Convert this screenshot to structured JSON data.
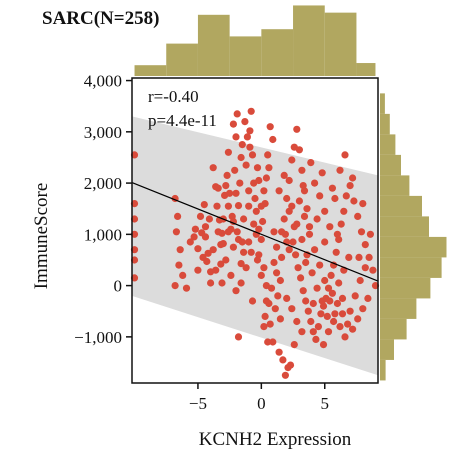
{
  "chart_data": {
    "type": "scatter",
    "title": "SARC(N=258)",
    "xlabel": "KCNH2 Expression",
    "ylabel": "ImmuneScore",
    "xlim": [
      -10.2,
      9.2
    ],
    "ylim": [
      -1900,
      4050
    ],
    "xticks": [
      -5,
      0,
      5
    ],
    "xtick_labels": [
      "−5",
      "0",
      "5"
    ],
    "yticks": [
      4000,
      3000,
      2000,
      1000,
      0,
      -1000
    ],
    "ytick_labels": [
      "4,000",
      "3,000",
      "2,000",
      "1,000",
      "0",
      "−1,000"
    ],
    "annotations": [
      "r=-0.40",
      "p=4.4e-11"
    ],
    "regression": {
      "slope": -99,
      "intercept": 1000,
      "x_range": [
        -10.2,
        9.2
      ]
    },
    "confidence_band": {
      "upper_left": 3300,
      "upper_right": 2150,
      "lower_left": -200,
      "lower_right": -1750
    },
    "points": [
      [
        -10.0,
        2550
      ],
      [
        -10.0,
        1600
      ],
      [
        -10.0,
        1300
      ],
      [
        -10.0,
        1000
      ],
      [
        -10.0,
        700
      ],
      [
        -10.0,
        500
      ],
      [
        -10.0,
        150
      ],
      [
        -6.8,
        1700
      ],
      [
        -6.6,
        1350
      ],
      [
        -6.7,
        1050
      ],
      [
        -6.4,
        700
      ],
      [
        -6.5,
        400
      ],
      [
        -6.2,
        200
      ],
      [
        -5.9,
        -50
      ],
      [
        -6.8,
        0
      ],
      [
        -5.3,
        950
      ],
      [
        -5.0,
        720
      ],
      [
        -4.7,
        1030
      ],
      [
        -4.5,
        1580
      ],
      [
        -4.4,
        1150
      ],
      [
        -4.2,
        630
      ],
      [
        -4.0,
        270
      ],
      [
        -4.3,
        470
      ],
      [
        -3.8,
        2300
      ],
      [
        -3.6,
        1930
      ],
      [
        -3.5,
        1550
      ],
      [
        -3.3,
        1280
      ],
      [
        -3.1,
        1020
      ],
      [
        -3.0,
        820
      ],
      [
        -3.2,
        420
      ],
      [
        -2.9,
        1760
      ],
      [
        -2.7,
        2150
      ],
      [
        -2.6,
        2600
      ],
      [
        -2.5,
        1800
      ],
      [
        -2.4,
        1100
      ],
      [
        -2.3,
        1350
      ],
      [
        -2.2,
        750
      ],
      [
        -2.1,
        2250
      ],
      [
        -2.0,
        1800
      ],
      [
        -1.9,
        1050
      ],
      [
        -1.8,
        1560
      ],
      [
        -1.7,
        2000
      ],
      [
        -1.6,
        430
      ],
      [
        -1.5,
        850
      ],
      [
        -1.8,
        -1000
      ],
      [
        -1.1,
        2900
      ],
      [
        -2.2,
        3150
      ],
      [
        -1.9,
        3350
      ],
      [
        -1.3,
        3200
      ],
      [
        -0.9,
        3020
      ],
      [
        -0.8,
        3400
      ],
      [
        -1.6,
        2500
      ],
      [
        -1.2,
        2350
      ],
      [
        -1.0,
        1850
      ],
      [
        -0.9,
        2700
      ],
      [
        -0.7,
        2550
      ],
      [
        -0.6,
        2000
      ],
      [
        -0.5,
        1700
      ],
      [
        -0.4,
        1450
      ],
      [
        -0.3,
        2300
      ],
      [
        -0.2,
        1100
      ],
      [
        0.0,
        900
      ],
      [
        0.1,
        1250
      ],
      [
        0.2,
        1850
      ],
      [
        0.3,
        1600
      ],
      [
        0.4,
        2100
      ],
      [
        0.5,
        2550
      ],
      [
        0.6,
        2300
      ],
      [
        0.7,
        3100
      ],
      [
        0.9,
        2850
      ],
      [
        -0.3,
        500
      ],
      [
        0.0,
        200
      ],
      [
        0.4,
        0
      ],
      [
        0.6,
        -350
      ],
      [
        0.3,
        -600
      ],
      [
        0.2,
        -800
      ],
      [
        0.5,
        -1100
      ],
      [
        1.0,
        450
      ],
      [
        1.2,
        750
      ],
      [
        1.3,
        -200
      ],
      [
        1.5,
        -650
      ],
      [
        1.4,
        -1300
      ],
      [
        1.7,
        -1450
      ],
      [
        1.9,
        -1750
      ],
      [
        2.1,
        -1600
      ],
      [
        2.3,
        -1550
      ],
      [
        1.6,
        1050
      ],
      [
        1.8,
        1300
      ],
      [
        2.0,
        1700
      ],
      [
        2.2,
        2050
      ],
      [
        2.4,
        2450
      ],
      [
        2.6,
        2700
      ],
      [
        2.8,
        3050
      ],
      [
        3.0,
        2650
      ],
      [
        3.2,
        2250
      ],
      [
        3.4,
        1850
      ],
      [
        3.6,
        1500
      ],
      [
        3.8,
        1150
      ],
      [
        2.5,
        850
      ],
      [
        2.7,
        600
      ],
      [
        2.9,
        350
      ],
      [
        3.1,
        150
      ],
      [
        3.3,
        -100
      ],
      [
        3.5,
        -300
      ],
      [
        3.7,
        -500
      ],
      [
        3.9,
        -700
      ],
      [
        4.1,
        -900
      ],
      [
        4.3,
        -1050
      ],
      [
        4.5,
        -800
      ],
      [
        4.7,
        -550
      ],
      [
        4.9,
        -400
      ],
      [
        5.1,
        -250
      ],
      [
        5.3,
        -50
      ],
      [
        5.5,
        200
      ],
      [
        5.7,
        400
      ],
      [
        5.9,
        650
      ],
      [
        6.1,
        900
      ],
      [
        6.3,
        1200
      ],
      [
        6.5,
        1450
      ],
      [
        6.7,
        1750
      ],
      [
        4.2,
        2000
      ],
      [
        4.6,
        1750
      ],
      [
        5.0,
        1450
      ],
      [
        5.4,
        1150
      ],
      [
        5.8,
        1700
      ],
      [
        6.2,
        2250
      ],
      [
        6.6,
        2550
      ],
      [
        7.0,
        1950
      ],
      [
        7.3,
        1650
      ],
      [
        7.6,
        1350
      ],
      [
        7.9,
        1050
      ],
      [
        8.2,
        800
      ],
      [
        8.5,
        550
      ],
      [
        8.8,
        300
      ],
      [
        9.0,
        0
      ],
      [
        8.4,
        -250
      ],
      [
        8.0,
        -450
      ],
      [
        7.6,
        -650
      ],
      [
        7.2,
        -850
      ],
      [
        6.8,
        -750
      ],
      [
        6.4,
        -550
      ],
      [
        6.0,
        -350
      ],
      [
        5.6,
        -150
      ],
      [
        5.2,
        -600
      ],
      [
        4.8,
        -300
      ],
      [
        4.4,
        -50
      ],
      [
        4.0,
        250
      ],
      [
        3.6,
        600
      ],
      [
        3.2,
        900
      ],
      [
        2.8,
        1200
      ],
      [
        2.4,
        1550
      ],
      [
        2.0,
        850
      ],
      [
        1.6,
        550
      ],
      [
        1.2,
        250
      ],
      [
        0.8,
        -50
      ],
      [
        0.4,
        -300
      ],
      [
        -0.4,
        1000
      ],
      [
        -0.8,
        650
      ],
      [
        -1.2,
        350
      ],
      [
        -1.6,
        50
      ],
      [
        -2.0,
        -100
      ],
      [
        -2.4,
        200
      ],
      [
        -2.8,
        500
      ],
      [
        -3.2,
        800
      ],
      [
        -3.6,
        300
      ],
      [
        -4.0,
        50
      ],
      [
        -4.4,
        950
      ],
      [
        -4.8,
        1350
      ],
      [
        -5.2,
        1100
      ],
      [
        -5.6,
        850
      ],
      [
        -3.0,
        1300
      ],
      [
        -2.6,
        1050
      ],
      [
        -1.4,
        1300
      ],
      [
        -1.0,
        1550
      ],
      [
        -0.6,
        1200
      ],
      [
        1.4,
        1850
      ],
      [
        1.8,
        2150
      ],
      [
        2.2,
        1450
      ],
      [
        2.6,
        1150
      ],
      [
        3.0,
        1650
      ],
      [
        3.4,
        1350
      ],
      [
        3.8,
        1000
      ],
      [
        4.2,
        700
      ],
      [
        4.6,
        400
      ],
      [
        5.0,
        100
      ],
      [
        5.4,
        -300
      ],
      [
        5.8,
        -550
      ],
      [
        6.2,
        -800
      ],
      [
        6.6,
        -1000
      ],
      [
        7.0,
        -500
      ],
      [
        7.4,
        -200
      ],
      [
        7.8,
        100
      ],
      [
        8.2,
        350
      ],
      [
        6.9,
        550
      ],
      [
        6.5,
        300
      ],
      [
        6.1,
        50
      ],
      [
        5.7,
        -700
      ],
      [
        5.3,
        -900
      ],
      [
        4.9,
        -1150
      ],
      [
        2.0,
        -250
      ],
      [
        2.4,
        -450
      ],
      [
        2.8,
        -700
      ],
      [
        3.2,
        -900
      ],
      [
        1.5,
        100
      ],
      [
        1.1,
        -450
      ],
      [
        0.7,
        -750
      ],
      [
        -0.2,
        600
      ],
      [
        0.2,
        350
      ],
      [
        -1.0,
        850
      ],
      [
        -1.4,
        650
      ],
      [
        -1.8,
        900
      ],
      [
        -2.2,
        1250
      ],
      [
        -2.6,
        1550
      ],
      [
        -3.4,
        1050
      ],
      [
        -3.8,
        700
      ],
      [
        -4.6,
        550
      ],
      [
        -5.0,
        300
      ],
      [
        3.9,
        2400
      ],
      [
        4.4,
        1300
      ],
      [
        5.6,
        1900
      ],
      [
        6.0,
        1000
      ],
      [
        7.2,
        2100
      ],
      [
        7.7,
        550
      ],
      [
        8.6,
        1000
      ],
      [
        3.5,
        450
      ],
      [
        4.1,
        -350
      ],
      [
        2.2,
        700
      ],
      [
        1.0,
        1050
      ],
      [
        0.0,
        1550
      ],
      [
        -0.2,
        2050
      ],
      [
        -1.5,
        2750
      ],
      [
        -2.0,
        2900
      ],
      [
        -2.8,
        1950
      ],
      [
        -3.4,
        1900
      ],
      [
        -4.1,
        1300
      ],
      [
        6.4,
        -250
      ],
      [
        5.0,
        850
      ],
      [
        3.3,
        1950
      ],
      [
        1.9,
        1000
      ],
      [
        0.9,
        -1100
      ],
      [
        2.6,
        -1150
      ],
      [
        -0.7,
        -300
      ],
      [
        -3.1,
        50
      ],
      [
        4.8,
        2200
      ],
      [
        8.0,
        1600
      ]
    ],
    "x_marginal": {
      "bins": [
        -10,
        -7.5,
        -5,
        -2.5,
        0,
        2.5,
        5,
        7.5,
        9
      ],
      "heights": [
        0.15,
        0.45,
        0.85,
        0.55,
        0.65,
        0.98,
        0.88,
        0.18
      ]
    },
    "y_marginal": {
      "bins": [
        -1850,
        -1450,
        -1050,
        -650,
        -250,
        150,
        550,
        950,
        1350,
        1750,
        2150,
        2550,
        2950,
        3350,
        3750
      ],
      "heights": [
        0.08,
        0.2,
        0.38,
        0.52,
        0.72,
        0.88,
        0.95,
        0.7,
        0.6,
        0.42,
        0.3,
        0.22,
        0.14,
        0.07
      ]
    },
    "colors": {
      "points": "#d94b3b",
      "band": "#dcdcdc",
      "line": "#000000",
      "marginal": "#b1a760"
    },
    "grid": false,
    "legend": "none"
  }
}
